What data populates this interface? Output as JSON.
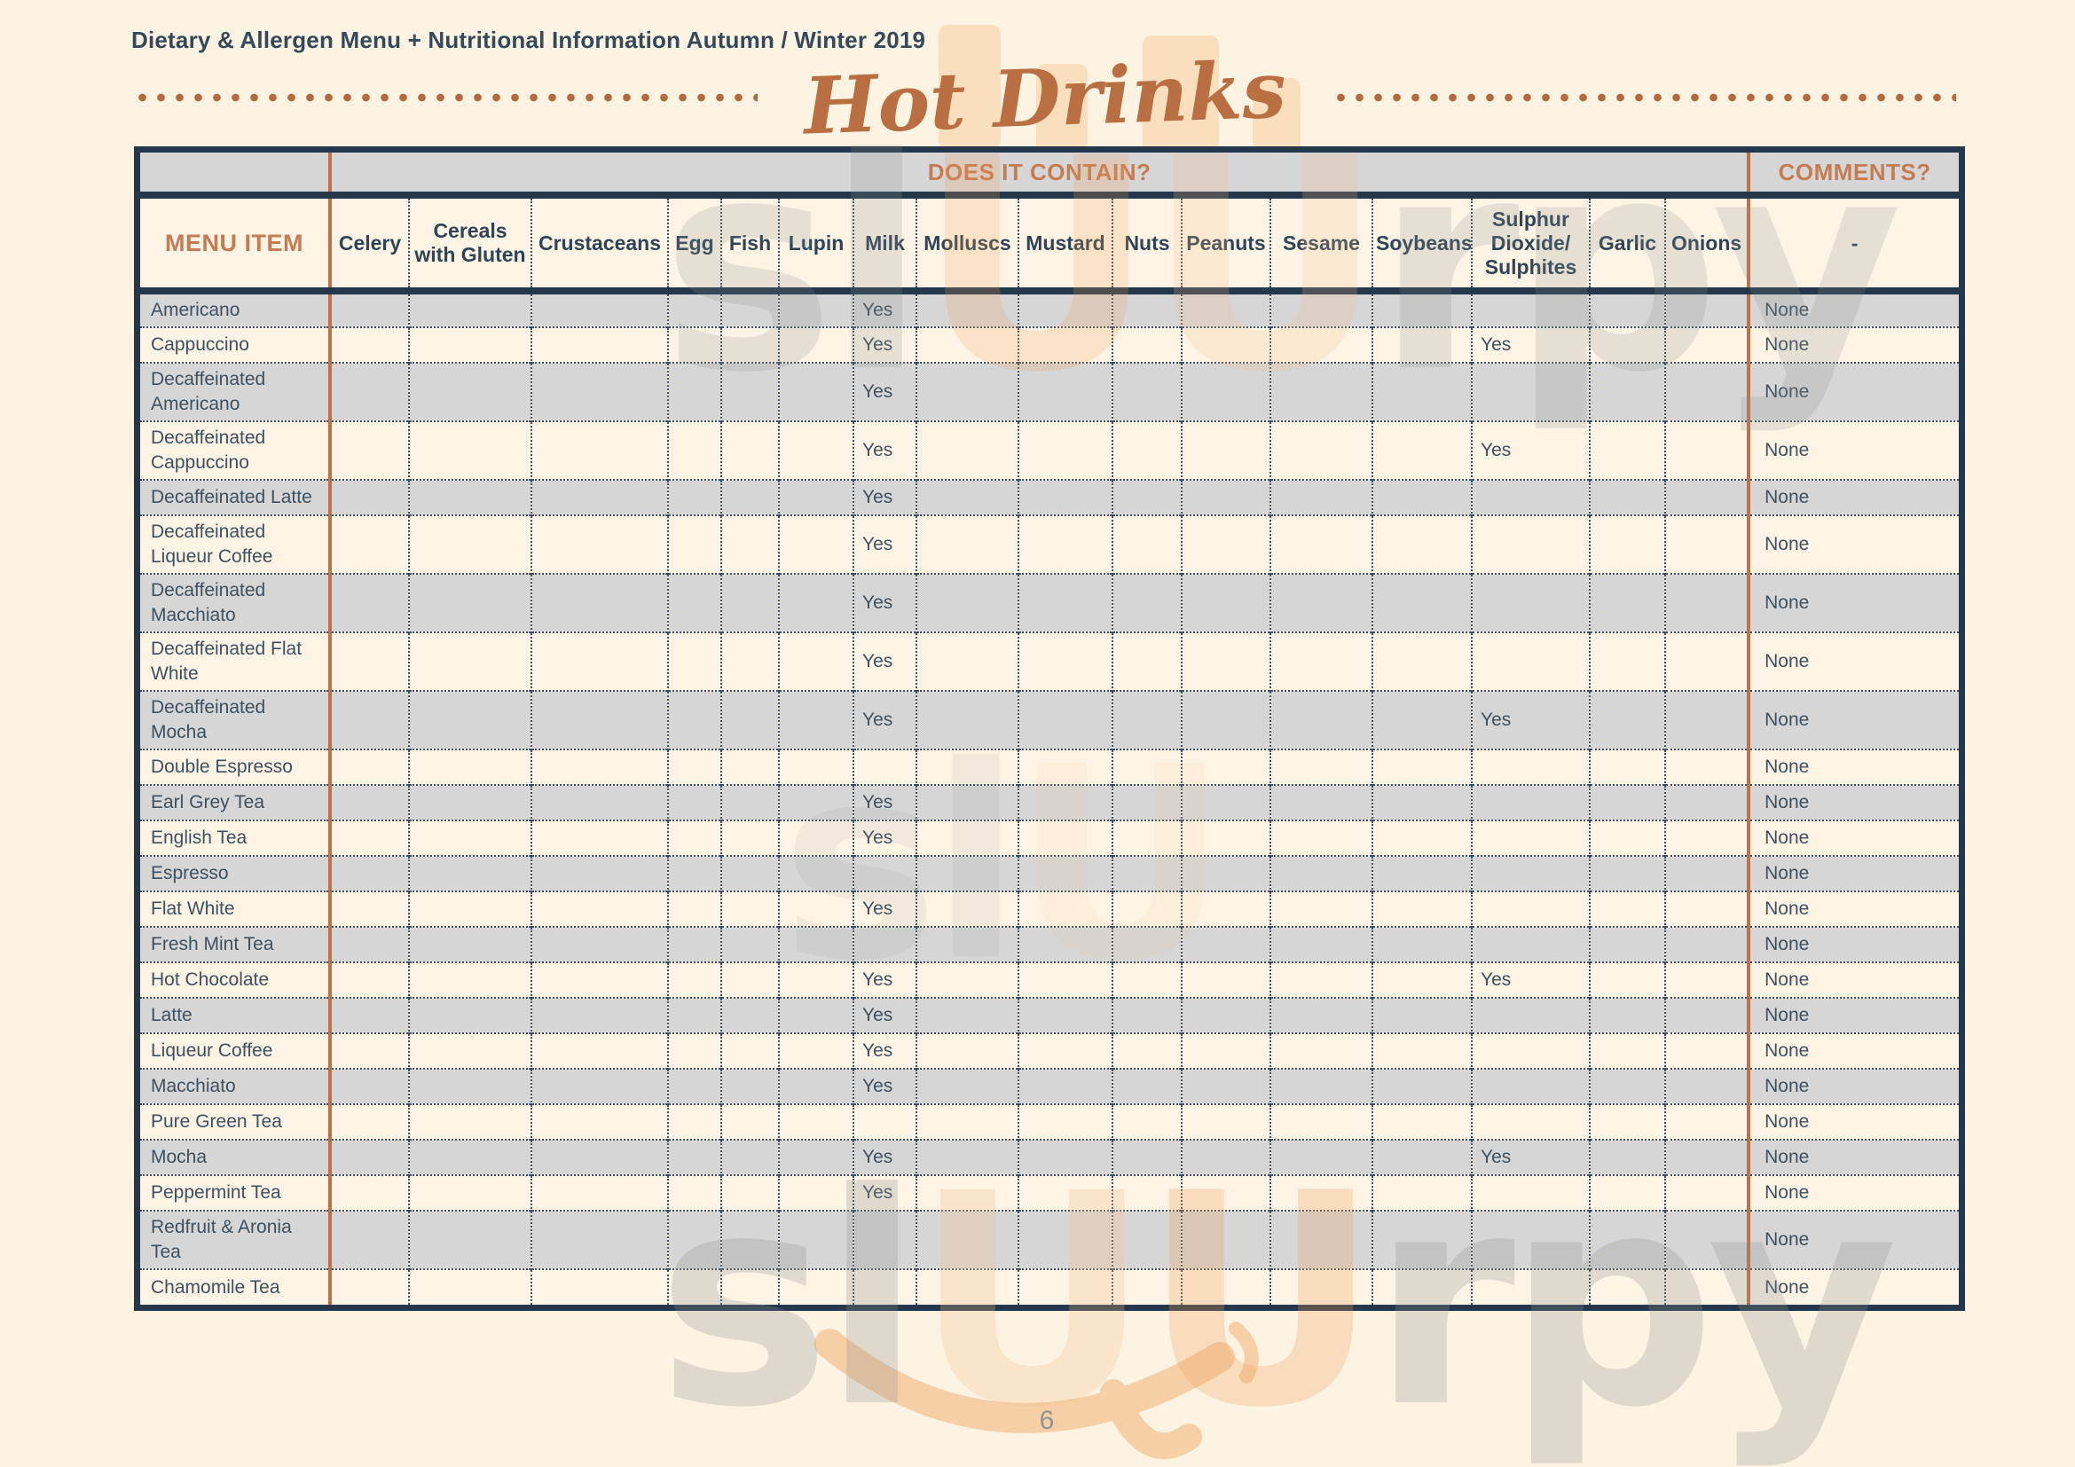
{
  "page": {
    "doc_title": "Dietary & Allergen Menu + Nutritional Information Autumn / Winter 2019",
    "section_title": "Hot Drinks",
    "page_number": "6",
    "watermark_parts": [
      "sl",
      "U",
      "U",
      "rpy"
    ],
    "watermark_parts_mid": [
      "sl",
      "U"
    ]
  },
  "colors": {
    "accent_orange": "#c67c52",
    "rule_orange": "#bf7247",
    "navy_border": "#25384b",
    "row_gray": "#d6d6d6",
    "row_cream": "#fdf4e5",
    "page_background": "#fcf3e2"
  },
  "table": {
    "contains_label": "DOES IT CONTAIN?",
    "comments_label": "COMMENTS?",
    "menu_item_label": "MENU ITEM",
    "comments_dash": "-",
    "allergen_columns": [
      "Celery",
      "Cereals with Gluten",
      "Crustaceans",
      "Egg",
      "Fish",
      "Lupin",
      "Milk",
      "Molluscs",
      "Mustard",
      "Nuts",
      "Peanuts",
      "Sesame",
      "Soybeans",
      "Sulphur Dioxide/ Sulphites",
      "Garlic",
      "Onions"
    ],
    "rows": [
      {
        "item": "Americano",
        "values": [
          "",
          "",
          "",
          "",
          "",
          "",
          "Yes",
          "",
          "",
          "",
          "",
          "",
          "",
          "",
          "",
          ""
        ],
        "comment": "None"
      },
      {
        "item": "Cappuccino",
        "values": [
          "",
          "",
          "",
          "",
          "",
          "",
          "Yes",
          "",
          "",
          "",
          "",
          "",
          "",
          "Yes",
          "",
          ""
        ],
        "comment": "None"
      },
      {
        "item": "Decaffeinated Americano",
        "values": [
          "",
          "",
          "",
          "",
          "",
          "",
          "Yes",
          "",
          "",
          "",
          "",
          "",
          "",
          "",
          "",
          ""
        ],
        "comment": "None"
      },
      {
        "item": "Decaffeinated Cappuccino",
        "values": [
          "",
          "",
          "",
          "",
          "",
          "",
          "Yes",
          "",
          "",
          "",
          "",
          "",
          "",
          "Yes",
          "",
          ""
        ],
        "comment": "None"
      },
      {
        "item": "Decaffeinated Latte",
        "values": [
          "",
          "",
          "",
          "",
          "",
          "",
          "Yes",
          "",
          "",
          "",
          "",
          "",
          "",
          "",
          "",
          ""
        ],
        "comment": "None"
      },
      {
        "item": "Decaffeinated Liqueur Coffee",
        "values": [
          "",
          "",
          "",
          "",
          "",
          "",
          "Yes",
          "",
          "",
          "",
          "",
          "",
          "",
          "",
          "",
          ""
        ],
        "comment": "None"
      },
      {
        "item": "Decaffeinated Macchiato",
        "values": [
          "",
          "",
          "",
          "",
          "",
          "",
          "Yes",
          "",
          "",
          "",
          "",
          "",
          "",
          "",
          "",
          ""
        ],
        "comment": "None"
      },
      {
        "item": "Decaffeinated Flat White",
        "values": [
          "",
          "",
          "",
          "",
          "",
          "",
          "Yes",
          "",
          "",
          "",
          "",
          "",
          "",
          "",
          "",
          ""
        ],
        "comment": "None"
      },
      {
        "item": "Decaffeinated Mocha",
        "values": [
          "",
          "",
          "",
          "",
          "",
          "",
          "Yes",
          "",
          "",
          "",
          "",
          "",
          "",
          "Yes",
          "",
          ""
        ],
        "comment": "None"
      },
      {
        "item": "Double Espresso",
        "values": [
          "",
          "",
          "",
          "",
          "",
          "",
          "",
          "",
          "",
          "",
          "",
          "",
          "",
          "",
          "",
          ""
        ],
        "comment": "None"
      },
      {
        "item": "Earl Grey Tea",
        "values": [
          "",
          "",
          "",
          "",
          "",
          "",
          "Yes",
          "",
          "",
          "",
          "",
          "",
          "",
          "",
          "",
          ""
        ],
        "comment": "None"
      },
      {
        "item": "English Tea",
        "values": [
          "",
          "",
          "",
          "",
          "",
          "",
          "Yes",
          "",
          "",
          "",
          "",
          "",
          "",
          "",
          "",
          ""
        ],
        "comment": "None"
      },
      {
        "item": "Espresso",
        "values": [
          "",
          "",
          "",
          "",
          "",
          "",
          "",
          "",
          "",
          "",
          "",
          "",
          "",
          "",
          "",
          ""
        ],
        "comment": "None"
      },
      {
        "item": "Flat White",
        "values": [
          "",
          "",
          "",
          "",
          "",
          "",
          "Yes",
          "",
          "",
          "",
          "",
          "",
          "",
          "",
          "",
          ""
        ],
        "comment": "None"
      },
      {
        "item": "Fresh Mint Tea",
        "values": [
          "",
          "",
          "",
          "",
          "",
          "",
          "",
          "",
          "",
          "",
          "",
          "",
          "",
          "",
          "",
          ""
        ],
        "comment": "None"
      },
      {
        "item": "Hot Chocolate",
        "values": [
          "",
          "",
          "",
          "",
          "",
          "",
          "Yes",
          "",
          "",
          "",
          "",
          "",
          "",
          "Yes",
          "",
          ""
        ],
        "comment": "None"
      },
      {
        "item": "Latte",
        "values": [
          "",
          "",
          "",
          "",
          "",
          "",
          "Yes",
          "",
          "",
          "",
          "",
          "",
          "",
          "",
          "",
          ""
        ],
        "comment": "None"
      },
      {
        "item": "Liqueur Coffee",
        "values": [
          "",
          "",
          "",
          "",
          "",
          "",
          "Yes",
          "",
          "",
          "",
          "",
          "",
          "",
          "",
          "",
          ""
        ],
        "comment": "None"
      },
      {
        "item": "Macchiato",
        "values": [
          "",
          "",
          "",
          "",
          "",
          "",
          "Yes",
          "",
          "",
          "",
          "",
          "",
          "",
          "",
          "",
          ""
        ],
        "comment": "None"
      },
      {
        "item": "Pure Green Tea",
        "values": [
          "",
          "",
          "",
          "",
          "",
          "",
          "",
          "",
          "",
          "",
          "",
          "",
          "",
          "",
          "",
          ""
        ],
        "comment": "None"
      },
      {
        "item": "Mocha",
        "values": [
          "",
          "",
          "",
          "",
          "",
          "",
          "Yes",
          "",
          "",
          "",
          "",
          "",
          "",
          "Yes",
          "",
          ""
        ],
        "comment": "None"
      },
      {
        "item": "Peppermint Tea",
        "values": [
          "",
          "",
          "",
          "",
          "",
          "",
          "Yes",
          "",
          "",
          "",
          "",
          "",
          "",
          "",
          "",
          ""
        ],
        "comment": "None"
      },
      {
        "item": "Redfruit & Aronia Tea",
        "values": [
          "",
          "",
          "",
          "",
          "",
          "",
          "",
          "",
          "",
          "",
          "",
          "",
          "",
          "",
          "",
          ""
        ],
        "comment": "None"
      },
      {
        "item": "Chamomile Tea",
        "values": [
          "",
          "",
          "",
          "",
          "",
          "",
          "",
          "",
          "",
          "",
          "",
          "",
          "",
          "",
          "",
          ""
        ],
        "comment": "None"
      }
    ]
  }
}
